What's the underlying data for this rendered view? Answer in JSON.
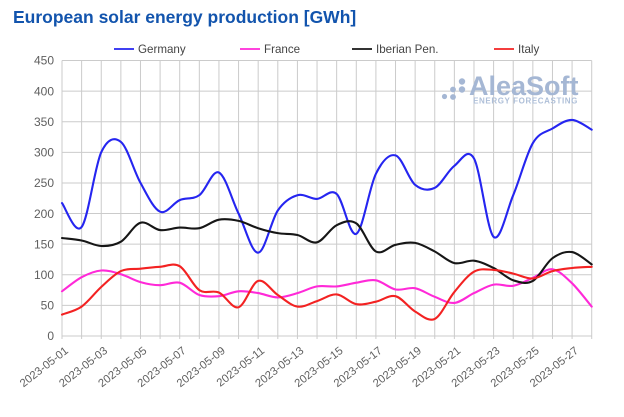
{
  "title": "European solar energy production [GWh]",
  "watermark": {
    "brand": "AleaSoft",
    "tagline": "ENERGY FORECASTING",
    "color": "#a5b7d4"
  },
  "axes": {
    "y_tick_labels": [
      "0",
      "50",
      "100",
      "150",
      "200",
      "250",
      "300",
      "350",
      "400",
      "450"
    ],
    "x_tick_labels": [
      "2023-05-01",
      "2023-05-03",
      "2023-05-05",
      "2023-05-07",
      "2023-05-09",
      "2023-05-11",
      "2023-05-13",
      "2023-05-15",
      "2023-05-17",
      "2023-05-19",
      "2023-05-21",
      "2023-05-23",
      "2023-05-25",
      "2023-05-27"
    ]
  },
  "chart_data": {
    "type": "line",
    "title": "European solar energy production [GWh]",
    "xlabel": "",
    "ylabel": "",
    "ylim": [
      0,
      450
    ],
    "ytick_step": 50,
    "grid": true,
    "legend_position": "top",
    "x": [
      "2023-05-01",
      "2023-05-02",
      "2023-05-03",
      "2023-05-04",
      "2023-05-05",
      "2023-05-06",
      "2023-05-07",
      "2023-05-08",
      "2023-05-09",
      "2023-05-10",
      "2023-05-11",
      "2023-05-12",
      "2023-05-13",
      "2023-05-14",
      "2023-05-15",
      "2023-05-16",
      "2023-05-17",
      "2023-05-18",
      "2023-05-19",
      "2023-05-20",
      "2023-05-21",
      "2023-05-22",
      "2023-05-23",
      "2023-05-24",
      "2023-05-25",
      "2023-05-26",
      "2023-05-27",
      "2023-05-28"
    ],
    "labeled_tick_indices": [
      0,
      2,
      4,
      6,
      8,
      10,
      12,
      14,
      16,
      18,
      20,
      22,
      24,
      26
    ],
    "series": [
      {
        "name": "Germany",
        "color": "#2525f0",
        "values": [
          217,
          178,
          300,
          317,
          250,
          203,
          222,
          230,
          267,
          200,
          136,
          205,
          230,
          224,
          232,
          167,
          265,
          295,
          247,
          242,
          278,
          290,
          162,
          230,
          315,
          339,
          353,
          337
        ]
      },
      {
        "name": "France",
        "color": "#ff29d8",
        "values": [
          73,
          96,
          107,
          101,
          88,
          83,
          87,
          67,
          65,
          73,
          70,
          63,
          70,
          81,
          81,
          87,
          91,
          76,
          78,
          64,
          54,
          70,
          84,
          82,
          95,
          109,
          86,
          48
        ]
      },
      {
        "name": "Iberian Pen.",
        "color": "#161616",
        "values": [
          160,
          156,
          147,
          154,
          185,
          173,
          177,
          176,
          190,
          188,
          176,
          168,
          165,
          153,
          181,
          184,
          138,
          149,
          152,
          138,
          119,
          123,
          111,
          91,
          90,
          127,
          137,
          117
        ]
      },
      {
        "name": "Italy",
        "color": "#f32222",
        "values": [
          35,
          48,
          80,
          106,
          110,
          113,
          114,
          75,
          71,
          47,
          90,
          67,
          48,
          57,
          68,
          52,
          56,
          65,
          40,
          28,
          72,
          105,
          108,
          102,
          94,
          106,
          111,
          113
        ]
      }
    ]
  }
}
